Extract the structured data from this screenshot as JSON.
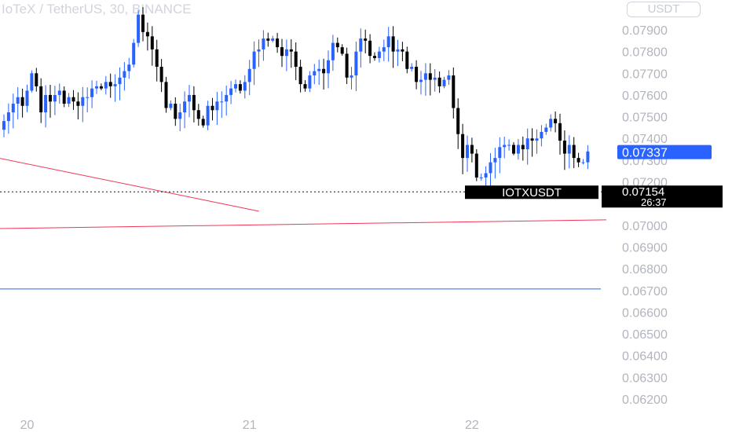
{
  "header": {
    "title": "IoTeX / TetherUS, 30, BINANCE",
    "currency_button": "USDT"
  },
  "colors": {
    "up": "#2962ff",
    "down": "#000000",
    "trendline_red": "#f23658",
    "support_blue": "#2962ff",
    "axis_text": "#b2b5be",
    "last_price_bg": "#2962ff",
    "symbol_label_bg": "#000000"
  },
  "price_tag": {
    "value": "0.07337"
  },
  "crosshair": {
    "price_label": "0.07154",
    "countdown": "26:37",
    "symbol_label": "IOTXUSDT"
  },
  "chart_data": {
    "type": "candlestick",
    "symbol": "IOTXUSDT",
    "interval": "30",
    "exchange": "BINANCE",
    "y_ticks": [
      "0.07900",
      "0.07800",
      "0.07700",
      "0.07600",
      "0.07500",
      "0.07400",
      "0.07300",
      "0.07200",
      "0.07000",
      "0.06900",
      "0.06800",
      "0.06700",
      "0.06600",
      "0.06500",
      "0.06400",
      "0.06300",
      "0.06200"
    ],
    "ylim": [
      0.0616,
      0.0803
    ],
    "x_ticks": [
      {
        "label": "20",
        "index": 5
      },
      {
        "label": "21",
        "index": 53
      },
      {
        "label": "22",
        "index": 101
      }
    ],
    "last_price": 0.07337,
    "crosshair_price": 0.07154,
    "candle_count": 127,
    "closes": [
      0.0748,
      0.0752,
      0.0756,
      0.0759,
      0.0755,
      0.0762,
      0.077,
      0.0764,
      0.0752,
      0.076,
      0.0757,
      0.076,
      0.0762,
      0.0756,
      0.0759,
      0.0757,
      0.0755,
      0.0759,
      0.0759,
      0.0763,
      0.0764,
      0.0763,
      0.0766,
      0.0764,
      0.0765,
      0.0768,
      0.0771,
      0.0774,
      0.0784,
      0.0797,
      0.0789,
      0.0787,
      0.0781,
      0.0773,
      0.0766,
      0.0754,
      0.0756,
      0.0749,
      0.0752,
      0.0757,
      0.076,
      0.0753,
      0.0749,
      0.0746,
      0.0755,
      0.0753,
      0.0757,
      0.0757,
      0.076,
      0.0763,
      0.0765,
      0.0762,
      0.0766,
      0.0772,
      0.078,
      0.0781,
      0.0786,
      0.0785,
      0.0786,
      0.0782,
      0.0778,
      0.0781,
      0.078,
      0.0773,
      0.0765,
      0.0763,
      0.0769,
      0.0771,
      0.0772,
      0.077,
      0.0776,
      0.0784,
      0.0782,
      0.0779,
      0.0768,
      0.0769,
      0.078,
      0.0786,
      0.0785,
      0.0778,
      0.0777,
      0.078,
      0.0782,
      0.0787,
      0.078,
      0.0781,
      0.078,
      0.0772,
      0.0773,
      0.0766,
      0.0767,
      0.077,
      0.0767,
      0.0768,
      0.0764,
      0.0767,
      0.0769,
      0.0754,
      0.0742,
      0.0731,
      0.0737,
      0.0733,
      0.0722,
      0.0722,
      0.0724,
      0.0729,
      0.0731,
      0.0736,
      0.0737,
      0.0737,
      0.0733,
      0.0737,
      0.0735,
      0.074,
      0.0739,
      0.074,
      0.0743,
      0.0745,
      0.0749,
      0.0747,
      0.0739,
      0.0733,
      0.0737,
      0.0731,
      0.0729,
      0.0729,
      0.0734
    ],
    "overlays": [
      {
        "kind": "trendline",
        "color": "red",
        "from": {
          "index": -1,
          "price": 0.07309
        },
        "to": {
          "index": 55,
          "price": 0.07065
        }
      },
      {
        "kind": "trendline",
        "color": "red",
        "from": {
          "index": -1,
          "price": 0.06985
        },
        "to": {
          "index": 130,
          "price": 0.07025
        }
      },
      {
        "kind": "horizontal",
        "color": "blue",
        "price": 0.06707
      }
    ]
  }
}
